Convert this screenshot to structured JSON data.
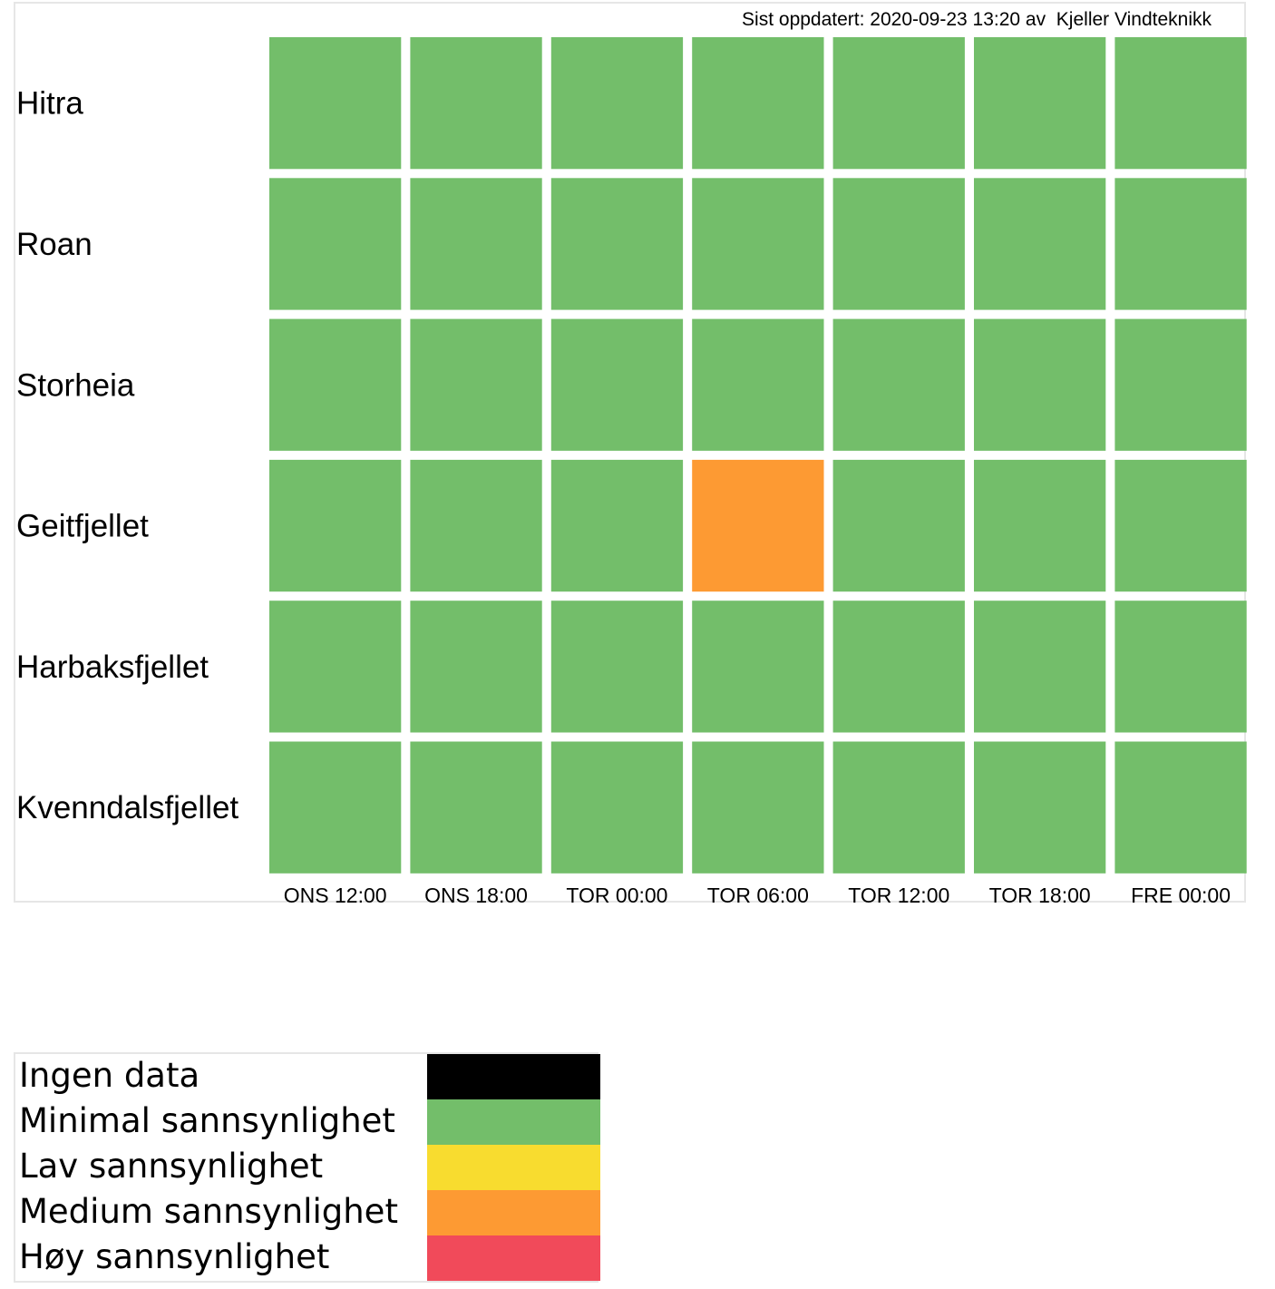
{
  "header": {
    "updated_label": "Sist oppdatert: 2020-09-23 13:20 av",
    "source": "Kjeller Vindteknikk"
  },
  "chart_data": {
    "type": "heatmap",
    "rows": [
      "Hitra",
      "Roan",
      "Storheia",
      "Geitfjellet",
      "Harbaksfjellet",
      "Kvenndalsfjellet"
    ],
    "columns": [
      "ONS 12:00",
      "ONS 18:00",
      "TOR 00:00",
      "TOR 06:00",
      "TOR 12:00",
      "TOR 18:00",
      "FRE 00:00"
    ],
    "values": [
      [
        "Minimal sannsynlighet",
        "Minimal sannsynlighet",
        "Minimal sannsynlighet",
        "Minimal sannsynlighet",
        "Minimal sannsynlighet",
        "Minimal sannsynlighet",
        "Minimal sannsynlighet"
      ],
      [
        "Minimal sannsynlighet",
        "Minimal sannsynlighet",
        "Minimal sannsynlighet",
        "Minimal sannsynlighet",
        "Minimal sannsynlighet",
        "Minimal sannsynlighet",
        "Minimal sannsynlighet"
      ],
      [
        "Minimal sannsynlighet",
        "Minimal sannsynlighet",
        "Minimal sannsynlighet",
        "Minimal sannsynlighet",
        "Minimal sannsynlighet",
        "Minimal sannsynlighet",
        "Minimal sannsynlighet"
      ],
      [
        "Minimal sannsynlighet",
        "Minimal sannsynlighet",
        "Minimal sannsynlighet",
        "Medium sannsynlighet",
        "Minimal sannsynlighet",
        "Minimal sannsynlighet",
        "Minimal sannsynlighet"
      ],
      [
        "Minimal sannsynlighet",
        "Minimal sannsynlighet",
        "Minimal sannsynlighet",
        "Minimal sannsynlighet",
        "Minimal sannsynlighet",
        "Minimal sannsynlighet",
        "Minimal sannsynlighet"
      ],
      [
        "Minimal sannsynlighet",
        "Minimal sannsynlighet",
        "Minimal sannsynlighet",
        "Minimal sannsynlighet",
        "Minimal sannsynlighet",
        "Minimal sannsynlighet",
        "Minimal sannsynlighet"
      ]
    ],
    "legend": [
      {
        "label": "Ingen data",
        "color": "#000000"
      },
      {
        "label": "Minimal sannsynlighet",
        "color": "#73be6a"
      },
      {
        "label": "Lav sannsynlighet",
        "color": "#f8dc2f"
      },
      {
        "label": "Medium sannsynlighet",
        "color": "#fd9a33"
      },
      {
        "label": "Høy sannsynlighet",
        "color": "#f14a5a"
      }
    ]
  }
}
